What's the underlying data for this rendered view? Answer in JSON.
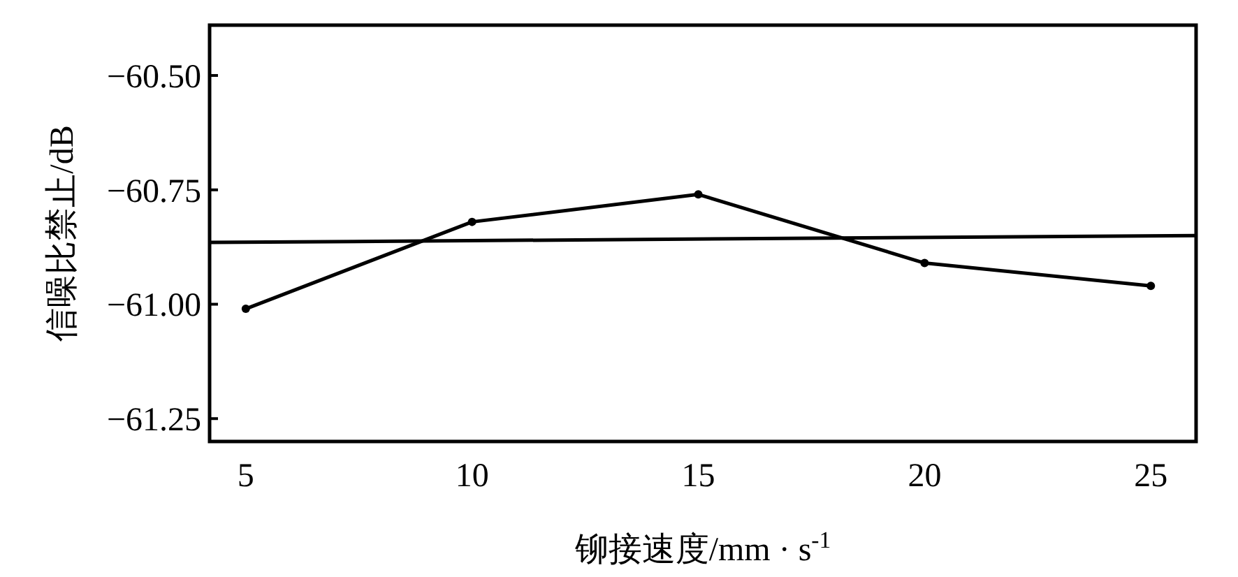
{
  "chart_data": {
    "type": "line",
    "xlabel": "铆接速度/mm · s$^{-1}$",
    "ylabel": "信噪比禁止/dB",
    "x": [
      5,
      10,
      15,
      20,
      25
    ],
    "series": [
      {
        "color": "#000000",
        "values": [
          -61.01,
          -60.82,
          -60.76,
          -60.91,
          -60.96
        ],
        "marker": "circle"
      },
      {
        "color": "#000000",
        "x": [
          4.2,
          26
        ],
        "values": [
          -60.865,
          -60.85
        ],
        "marker": "none"
      }
    ],
    "xlim": [
      4.2,
      26
    ],
    "xticks": [
      5,
      10,
      15,
      20,
      25
    ],
    "ylim": [
      -61.3,
      -60.39
    ],
    "yticks": [
      {
        "value": -60.5,
        "label": "−60.50"
      },
      {
        "value": -60.75,
        "label": "−60.75"
      },
      {
        "value": -61,
        "label": "−61.00"
      },
      {
        "value": -61.25,
        "label": "−61.25"
      }
    ],
    "grid": false
  }
}
